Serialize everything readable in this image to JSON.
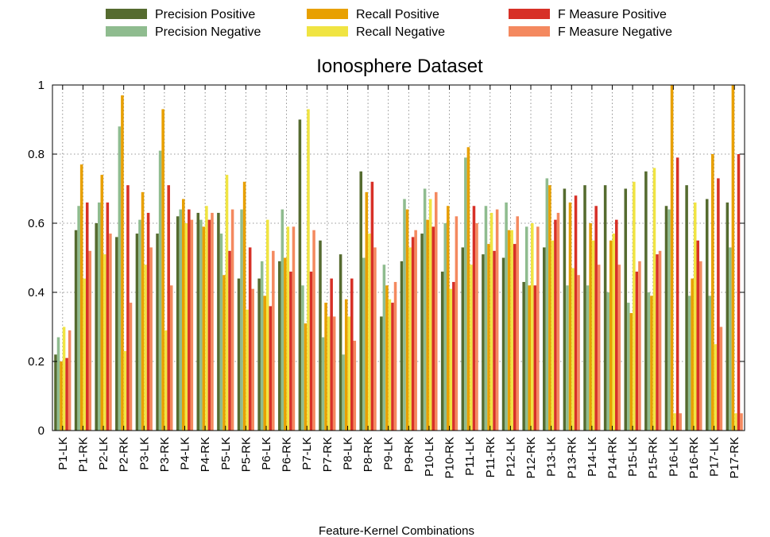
{
  "chart_data": {
    "type": "bar",
    "title": "Ionosphere Dataset",
    "xlabel": "Feature-Kernel Combinations",
    "ylabel": "",
    "ylim": [
      0,
      1
    ],
    "yticks": [
      0,
      0.2,
      0.4,
      0.6,
      0.8,
      1
    ],
    "ytick_labels": [
      "0",
      "0.2",
      "0.4",
      "0.6",
      "0.8",
      "1"
    ],
    "grid": true,
    "legend_position": "top",
    "categories": [
      "P1-LK",
      "P1-RK",
      "P2-LK",
      "P2-RK",
      "P3-LK",
      "P3-RK",
      "P4-LK",
      "P4-RK",
      "P5-LK",
      "P5-RK",
      "P6-LK",
      "P6-RK",
      "P7-LK",
      "P7-RK",
      "P8-LK",
      "P8-RK",
      "P9-LK",
      "P9-RK",
      "P10-LK",
      "P10-RK",
      "P11-LK",
      "P11-RK",
      "P12-LK",
      "P12-RK",
      "P13-LK",
      "P13-RK",
      "P14-LK",
      "P14-RK",
      "P15-LK",
      "P15-RK",
      "P16-LK",
      "P16-RK",
      "P17-LK",
      "P17-RK"
    ],
    "series": [
      {
        "name": "Precision Positive",
        "color": "#556b2f",
        "values": [
          0.22,
          0.58,
          0.6,
          0.56,
          0.57,
          0.57,
          0.62,
          0.63,
          0.63,
          0.44,
          0.44,
          0.49,
          0.9,
          0.55,
          0.51,
          0.75,
          0.33,
          0.49,
          0.57,
          0.46,
          0.53,
          0.51,
          0.5,
          0.43,
          0.53,
          0.7,
          0.71,
          0.71,
          0.7,
          0.75,
          0.65,
          0.71,
          0.67,
          0.66
        ]
      },
      {
        "name": "Precision Negative",
        "color": "#8fbc8f",
        "values": [
          0.27,
          0.65,
          0.66,
          0.88,
          0.61,
          0.81,
          0.64,
          0.61,
          0.57,
          0.64,
          0.49,
          0.64,
          0.42,
          0.27,
          0.22,
          0.5,
          0.48,
          0.67,
          0.7,
          0.6,
          0.79,
          0.65,
          0.66,
          0.59,
          0.73,
          0.42,
          0.42,
          0.4,
          0.37,
          0.4,
          0.64,
          0.39,
          0.39,
          0.53
        ]
      },
      {
        "name": "Recall Positive",
        "color": "#e8a000",
        "values": [
          0.2,
          0.77,
          0.74,
          0.97,
          0.69,
          0.93,
          0.67,
          0.59,
          0.45,
          0.72,
          0.39,
          0.5,
          0.31,
          0.37,
          0.38,
          0.69,
          0.42,
          0.64,
          0.61,
          0.65,
          0.82,
          0.54,
          0.58,
          0.42,
          0.71,
          0.66,
          0.6,
          0.55,
          0.34,
          0.39,
          1.0,
          0.44,
          0.8,
          1.0
        ]
      },
      {
        "name": "Recall Negative",
        "color": "#f0e442",
        "values": [
          0.3,
          0.44,
          0.51,
          0.23,
          0.48,
          0.29,
          0.6,
          0.65,
          0.74,
          0.35,
          0.61,
          0.59,
          0.93,
          0.33,
          0.33,
          0.57,
          0.38,
          0.53,
          0.67,
          0.41,
          0.48,
          0.63,
          0.58,
          0.6,
          0.55,
          0.47,
          0.55,
          0.57,
          0.72,
          0.76,
          0.05,
          0.66,
          0.25,
          0.05
        ]
      },
      {
        "name": "F Measure Positive",
        "color": "#d73027",
        "values": [
          0.21,
          0.66,
          0.66,
          0.71,
          0.63,
          0.71,
          0.64,
          0.61,
          0.52,
          0.53,
          0.36,
          0.46,
          0.46,
          0.44,
          0.44,
          0.72,
          0.37,
          0.56,
          0.59,
          0.43,
          0.65,
          0.52,
          0.54,
          0.42,
          0.61,
          0.68,
          0.65,
          0.61,
          0.46,
          0.51,
          0.79,
          0.55,
          0.73,
          0.8
        ]
      },
      {
        "name": "F Measure Negative",
        "color": "#f4895f",
        "values": [
          0.29,
          0.52,
          0.57,
          0.37,
          0.53,
          0.42,
          0.61,
          0.63,
          0.64,
          0.41,
          0.52,
          0.59,
          0.58,
          0.33,
          0.26,
          0.53,
          0.43,
          0.58,
          0.69,
          0.62,
          0.6,
          0.64,
          0.62,
          0.59,
          0.63,
          0.45,
          0.48,
          0.48,
          0.49,
          0.52,
          0.05,
          0.49,
          0.3,
          0.05
        ]
      }
    ]
  }
}
